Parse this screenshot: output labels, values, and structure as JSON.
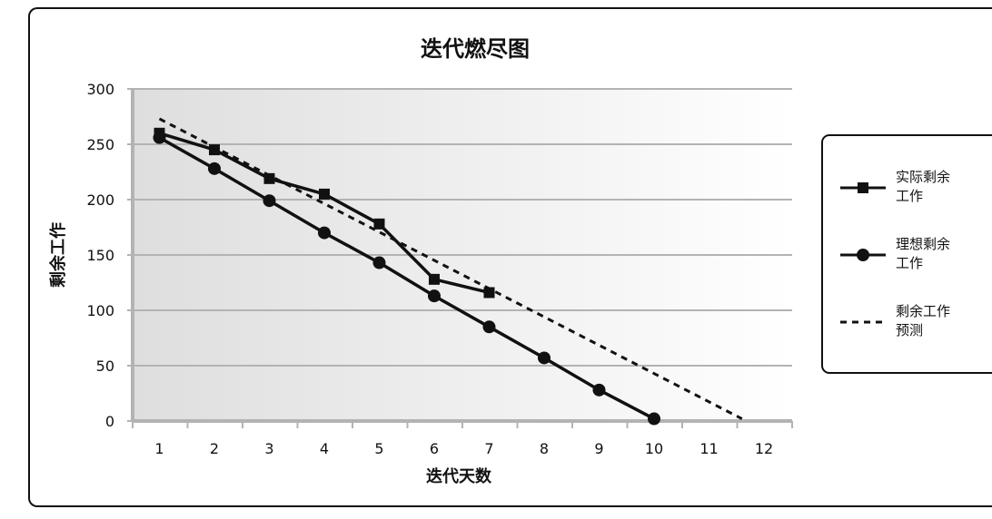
{
  "chart_data": {
    "type": "line",
    "title": "迭代燃尽图",
    "xlabel": "迭代天数",
    "ylabel": "剩余工作",
    "x": [
      1,
      2,
      3,
      4,
      5,
      6,
      7,
      8,
      9,
      10,
      11,
      12
    ],
    "xlim": [
      0.5,
      12.5
    ],
    "ylim": [
      0,
      300
    ],
    "y_ticks": [
      0,
      50,
      100,
      150,
      200,
      250,
      300
    ],
    "grid": true,
    "legend_position": "right",
    "series": [
      {
        "name": "实际剩余工作",
        "marker": "square",
        "style": "solid",
        "color": "#111111",
        "points": [
          [
            1,
            260
          ],
          [
            2,
            245
          ],
          [
            3,
            219
          ],
          [
            4,
            205
          ],
          [
            5,
            178
          ],
          [
            6,
            128
          ],
          [
            7,
            116
          ]
        ]
      },
      {
        "name": "理想剩余工作",
        "marker": "circle",
        "style": "solid",
        "color": "#111111",
        "points": [
          [
            1,
            256
          ],
          [
            2,
            228
          ],
          [
            3,
            199
          ],
          [
            4,
            170
          ],
          [
            5,
            143
          ],
          [
            6,
            113
          ],
          [
            7,
            85
          ],
          [
            8,
            57
          ],
          [
            9,
            28
          ],
          [
            10,
            2
          ]
        ]
      },
      {
        "name": "剩余工作预测",
        "marker": "none",
        "style": "dashed",
        "color": "#111111",
        "points": [
          [
            1,
            273
          ],
          [
            11.6,
            2
          ]
        ]
      }
    ],
    "legend_lines": [
      [
        "实际剩余",
        "工作"
      ],
      [
        "理想剩余",
        "工作"
      ],
      [
        "剩余工作",
        "预测"
      ]
    ]
  }
}
